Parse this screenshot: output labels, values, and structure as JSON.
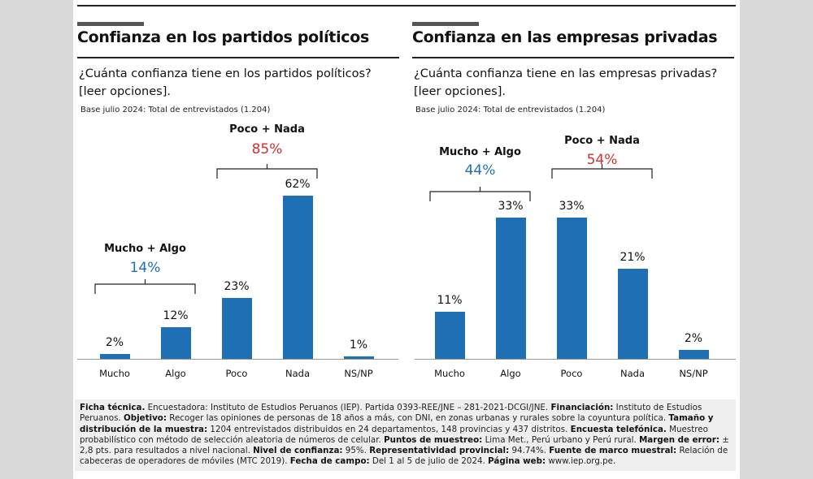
{
  "colors": {
    "bar": "#1f6fb5",
    "mucho_algo": "#1f6fb5",
    "poco_nada": "#d0312d"
  },
  "chart_data": [
    {
      "type": "bar",
      "title": "Confianza en los partidos políticos",
      "subtitle": "¿Cuánta confianza tiene en los partidos políticos? [leer opciones].",
      "note": "Base julio 2024: Total de entrevistados (1.204)",
      "categories": [
        "Mucho",
        "Algo",
        "Poco",
        "Nada",
        "NS/NP"
      ],
      "values": [
        2,
        12,
        23,
        62,
        1
      ],
      "value_labels": [
        "2%",
        "12%",
        "23%",
        "62%",
        "1%"
      ],
      "groups": [
        {
          "label": "Mucho + Algo",
          "value": "14%",
          "from": 0,
          "to": 1,
          "color": "#1f6fb5"
        },
        {
          "label": "Poco + Nada",
          "value": "85%",
          "from": 2,
          "to": 3,
          "color": "#d0312d"
        }
      ]
    },
    {
      "type": "bar",
      "title": "Confianza en las empresas privadas",
      "subtitle": "¿Cuánta confianza tiene en las empresas privadas? [leer opciones].",
      "note": "Base julio 2024: Total de entrevistados (1.204)",
      "categories": [
        "Mucho",
        "Algo",
        "Poco",
        "Nada",
        "NS/NP"
      ],
      "values": [
        11,
        33,
        33,
        21,
        2
      ],
      "value_labels": [
        "11%",
        "33%",
        "33%",
        "21%",
        "2%"
      ],
      "groups": [
        {
          "label": "Mucho + Algo",
          "value": "44%",
          "from": 0,
          "to": 1,
          "color": "#1f6fb5"
        },
        {
          "label": "Poco + Nada",
          "value": "54%",
          "from": 2,
          "to": 3,
          "color": "#d0312d"
        }
      ]
    }
  ],
  "footer": [
    {
      "b": "Ficha técnica.",
      "t": " Encuestadora: Instituto de Estudios Peruanos (IEP). Partida 0393-REE/JNE – 281-2021-DCGI/JNE. "
    },
    {
      "b": "Financiación:",
      "t": " Instituto de Estudios Peruanos. "
    },
    {
      "b": "Objetivo:",
      "t": " Recoger las opiniones de personas de 18 años a más, con DNI, en zonas urbanas y rurales sobre la coyuntura política. "
    },
    {
      "b": "Tamaño y distribución de la muestra:",
      "t": " 1204 entrevistados distribuidos en 24 departamentos, 148 provincias y 437 distritos. "
    },
    {
      "b": "Encuesta telefónica.",
      "t": " Muestreo probabilístico con método de selección aleatoria de números de celular. "
    },
    {
      "b": "Puntos de muestreo:",
      "t": " Lima Met., Perú urbano y Perú rural. "
    },
    {
      "b": "Margen de error:",
      "t": " ± 2,8 pts. para resultados a nivel nacional. "
    },
    {
      "b": "Nivel de confianza:",
      "t": " 95%. "
    },
    {
      "b": "Representatividad provincial:",
      "t": " 94.74%. "
    },
    {
      "b": "Fuente de marco muestral:",
      "t": " Relación de cabeceras de operadores de móviles (MTC 2019). "
    },
    {
      "b": "Fecha de campo:",
      "t": " Del 1 al 5 de julio de 2024. "
    },
    {
      "b": "Página web:",
      "t": " www.iep.org.pe."
    }
  ]
}
